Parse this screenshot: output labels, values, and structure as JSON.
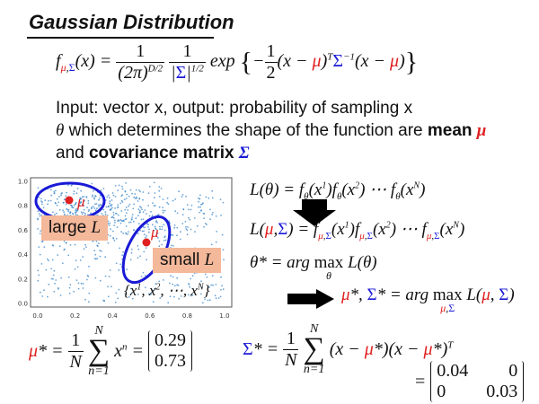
{
  "title": "Gaussian Distribution",
  "line_input": "Input: vector x, output: probability of sampling x",
  "line_theta_pre": "which determines the shape of the function are",
  "line_theta_mean": "mean",
  "line_and": "and",
  "line_cov": "covariance matrix",
  "scatter": {
    "x_ticks": [
      "0.0",
      "0.2",
      "0.4",
      "0.6",
      "0.8",
      "1.0"
    ],
    "y_ticks": [
      "0.0",
      "0.2",
      "0.4",
      "0.6",
      "0.8",
      "1.0"
    ],
    "large_label": "large",
    "small_label": "small",
    "ellipse_color": "#1a1ad6",
    "center_color": "#e02020",
    "point_color": "#3a86c8"
  },
  "mu_values": [
    "0.29",
    "0.73"
  ],
  "sigma_values": [
    [
      "0.04",
      "0"
    ],
    [
      "0",
      "0.03"
    ]
  ],
  "colors": {
    "mu": "#e02020",
    "sigma": "#1a1ad6",
    "label_bg": "#f4b89a"
  }
}
